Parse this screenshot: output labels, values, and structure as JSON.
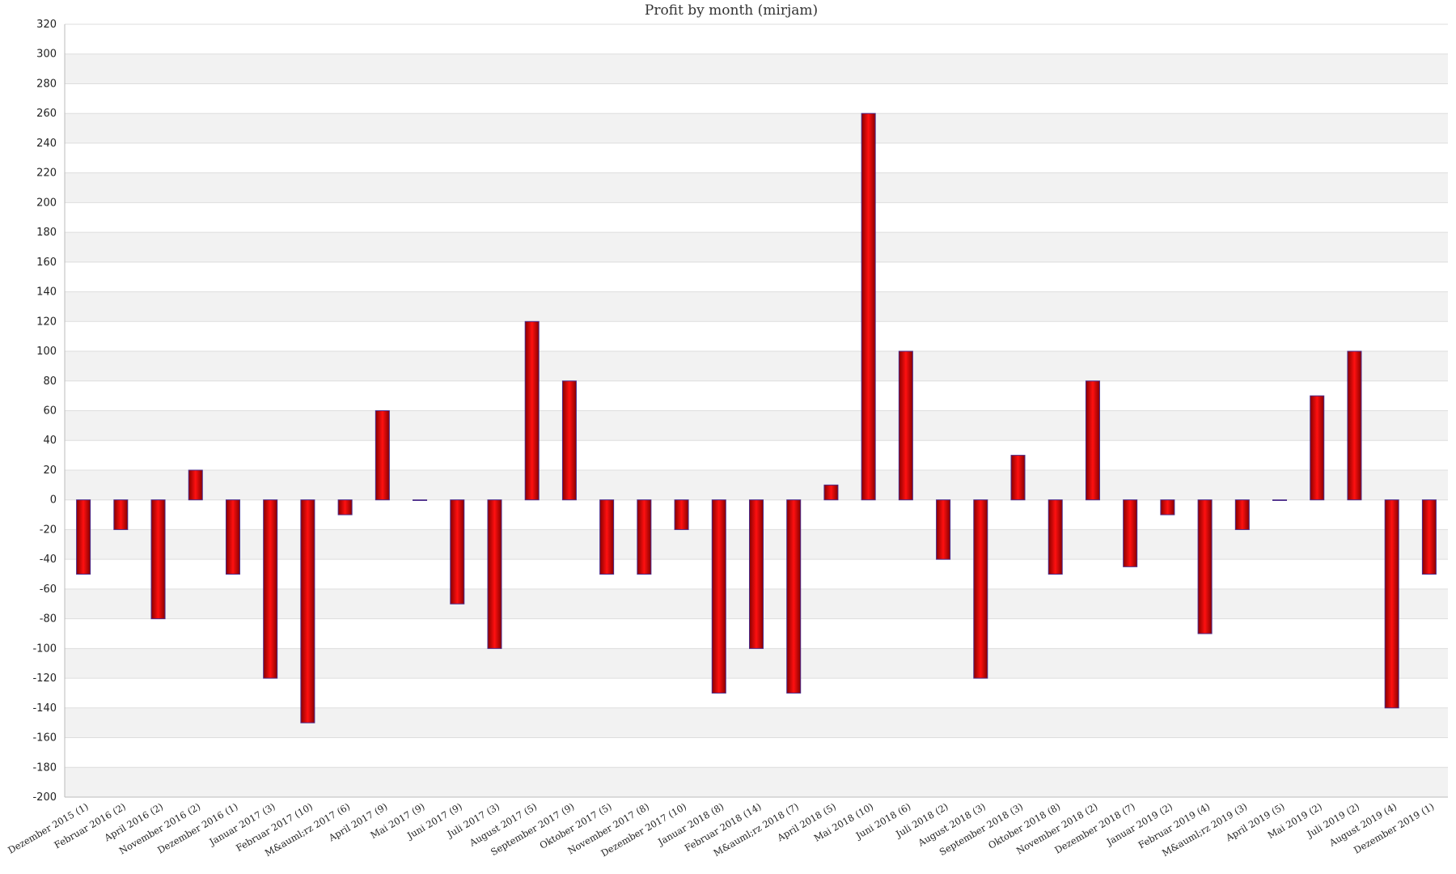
{
  "chart_data": {
    "type": "bar",
    "title": "Profit by month  (mirjam)",
    "xlabel": "",
    "ylabel": "",
    "ylim": [
      -200,
      320
    ],
    "ytick_step": 20,
    "grid": true,
    "categories": [
      "Dezember 2015 (1)",
      "Februar 2016 (2)",
      "April 2016 (2)",
      "November 2016 (2)",
      "Dezember 2016 (1)",
      "Januar 2017 (3)",
      "Februar 2017 (10)",
      "M&auml;rz 2017 (6)",
      "April 2017 (9)",
      "Mai 2017 (9)",
      "Juni 2017 (9)",
      "Juli 2017 (3)",
      "August 2017 (5)",
      "September 2017 (9)",
      "Oktober 2017 (5)",
      "November 2017 (8)",
      "Dezember 2017 (10)",
      "Januar 2018 (8)",
      "Februar 2018 (14)",
      "M&auml;rz 2018 (7)",
      "April 2018 (5)",
      "Mai 2018 (10)",
      "Juni 2018 (6)",
      "Juli 2018 (2)",
      "August 2018 (3)",
      "September 2018 (3)",
      "Oktober 2018 (8)",
      "November 2018 (2)",
      "Dezember 2018 (7)",
      "Januar 2019 (2)",
      "Februar 2019 (4)",
      "M&auml;rz 2019 (3)",
      "April 2019 (5)",
      "Mai 2019 (2)",
      "Juli 2019 (2)",
      "August 2019 (4)",
      "Dezember 2019 (1)"
    ],
    "series": [
      {
        "values": [
          -50,
          -20,
          -80,
          20,
          -50,
          -120,
          -150,
          -10,
          60,
          0,
          -70,
          -100,
          120,
          80,
          -50,
          -50,
          -20,
          -130,
          -100,
          -130,
          10,
          260,
          100,
          -40,
          -120,
          30,
          -50,
          80,
          -45,
          -10,
          -90,
          -20,
          0,
          70,
          100,
          -140,
          -50
        ]
      }
    ],
    "colors": {
      "bar_fill": "#e00000",
      "bar_edge": "#4a2a8a",
      "band_alt": "#f2f2f2",
      "grid": "#dddddd"
    }
  }
}
